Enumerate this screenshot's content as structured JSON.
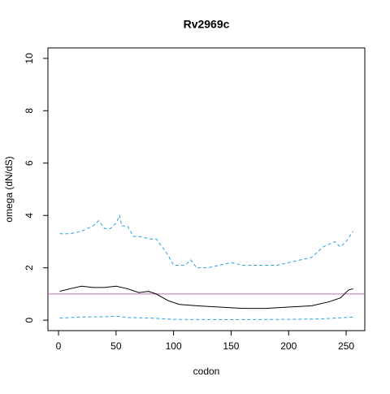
{
  "chart_data": {
    "type": "line",
    "title": "Rv2969c",
    "x_label": "codon",
    "y_label": "omega (dN/dS)",
    "xlim": [
      -9.2,
      266.2
    ],
    "ylim": [
      -0.4,
      10.4
    ],
    "xticks": [
      0,
      50,
      100,
      150,
      200,
      250
    ],
    "yticks": [
      0,
      2,
      4,
      6,
      8,
      10
    ],
    "series": [
      {
        "color": "#29a3e0",
        "dash": "dashed",
        "x": [
          1,
          10,
          20,
          30,
          35,
          40,
          45,
          50,
          53,
          55,
          60,
          65,
          70,
          80,
          85,
          90,
          95,
          100,
          110,
          115,
          120,
          130,
          140,
          150,
          160,
          170,
          180,
          190,
          200,
          210,
          220,
          230,
          240,
          245,
          250,
          256
        ],
        "values": [
          3.3,
          3.3,
          3.4,
          3.6,
          3.8,
          3.5,
          3.5,
          3.7,
          4.0,
          3.6,
          3.6,
          3.2,
          3.2,
          3.1,
          3.1,
          2.8,
          2.5,
          2.1,
          2.1,
          2.3,
          2.0,
          2.0,
          2.1,
          2.2,
          2.1,
          2.1,
          2.1,
          2.1,
          2.2,
          2.3,
          2.4,
          2.8,
          3.0,
          2.8,
          3.0,
          3.4
        ]
      },
      {
        "color": "#000000",
        "dash": "solid",
        "x": [
          1,
          10,
          20,
          30,
          40,
          50,
          60,
          70,
          78,
          85,
          95,
          105,
          120,
          140,
          160,
          180,
          200,
          220,
          235,
          245,
          252,
          256
        ],
        "values": [
          1.1,
          1.2,
          1.3,
          1.25,
          1.25,
          1.3,
          1.2,
          1.05,
          1.1,
          1.0,
          0.75,
          0.6,
          0.55,
          0.5,
          0.45,
          0.45,
          0.5,
          0.55,
          0.7,
          0.85,
          1.15,
          1.2
        ]
      },
      {
        "color": "#29a3e0",
        "dash": "dashed",
        "x": [
          1,
          20,
          40,
          50,
          60,
          80,
          100,
          150,
          200,
          230,
          256
        ],
        "values": [
          0.08,
          0.12,
          0.13,
          0.15,
          0.1,
          0.08,
          0.03,
          0.02,
          0.03,
          0.05,
          0.12
        ]
      }
    ],
    "hline": {
      "value": 1,
      "color": "#c070c0"
    }
  }
}
